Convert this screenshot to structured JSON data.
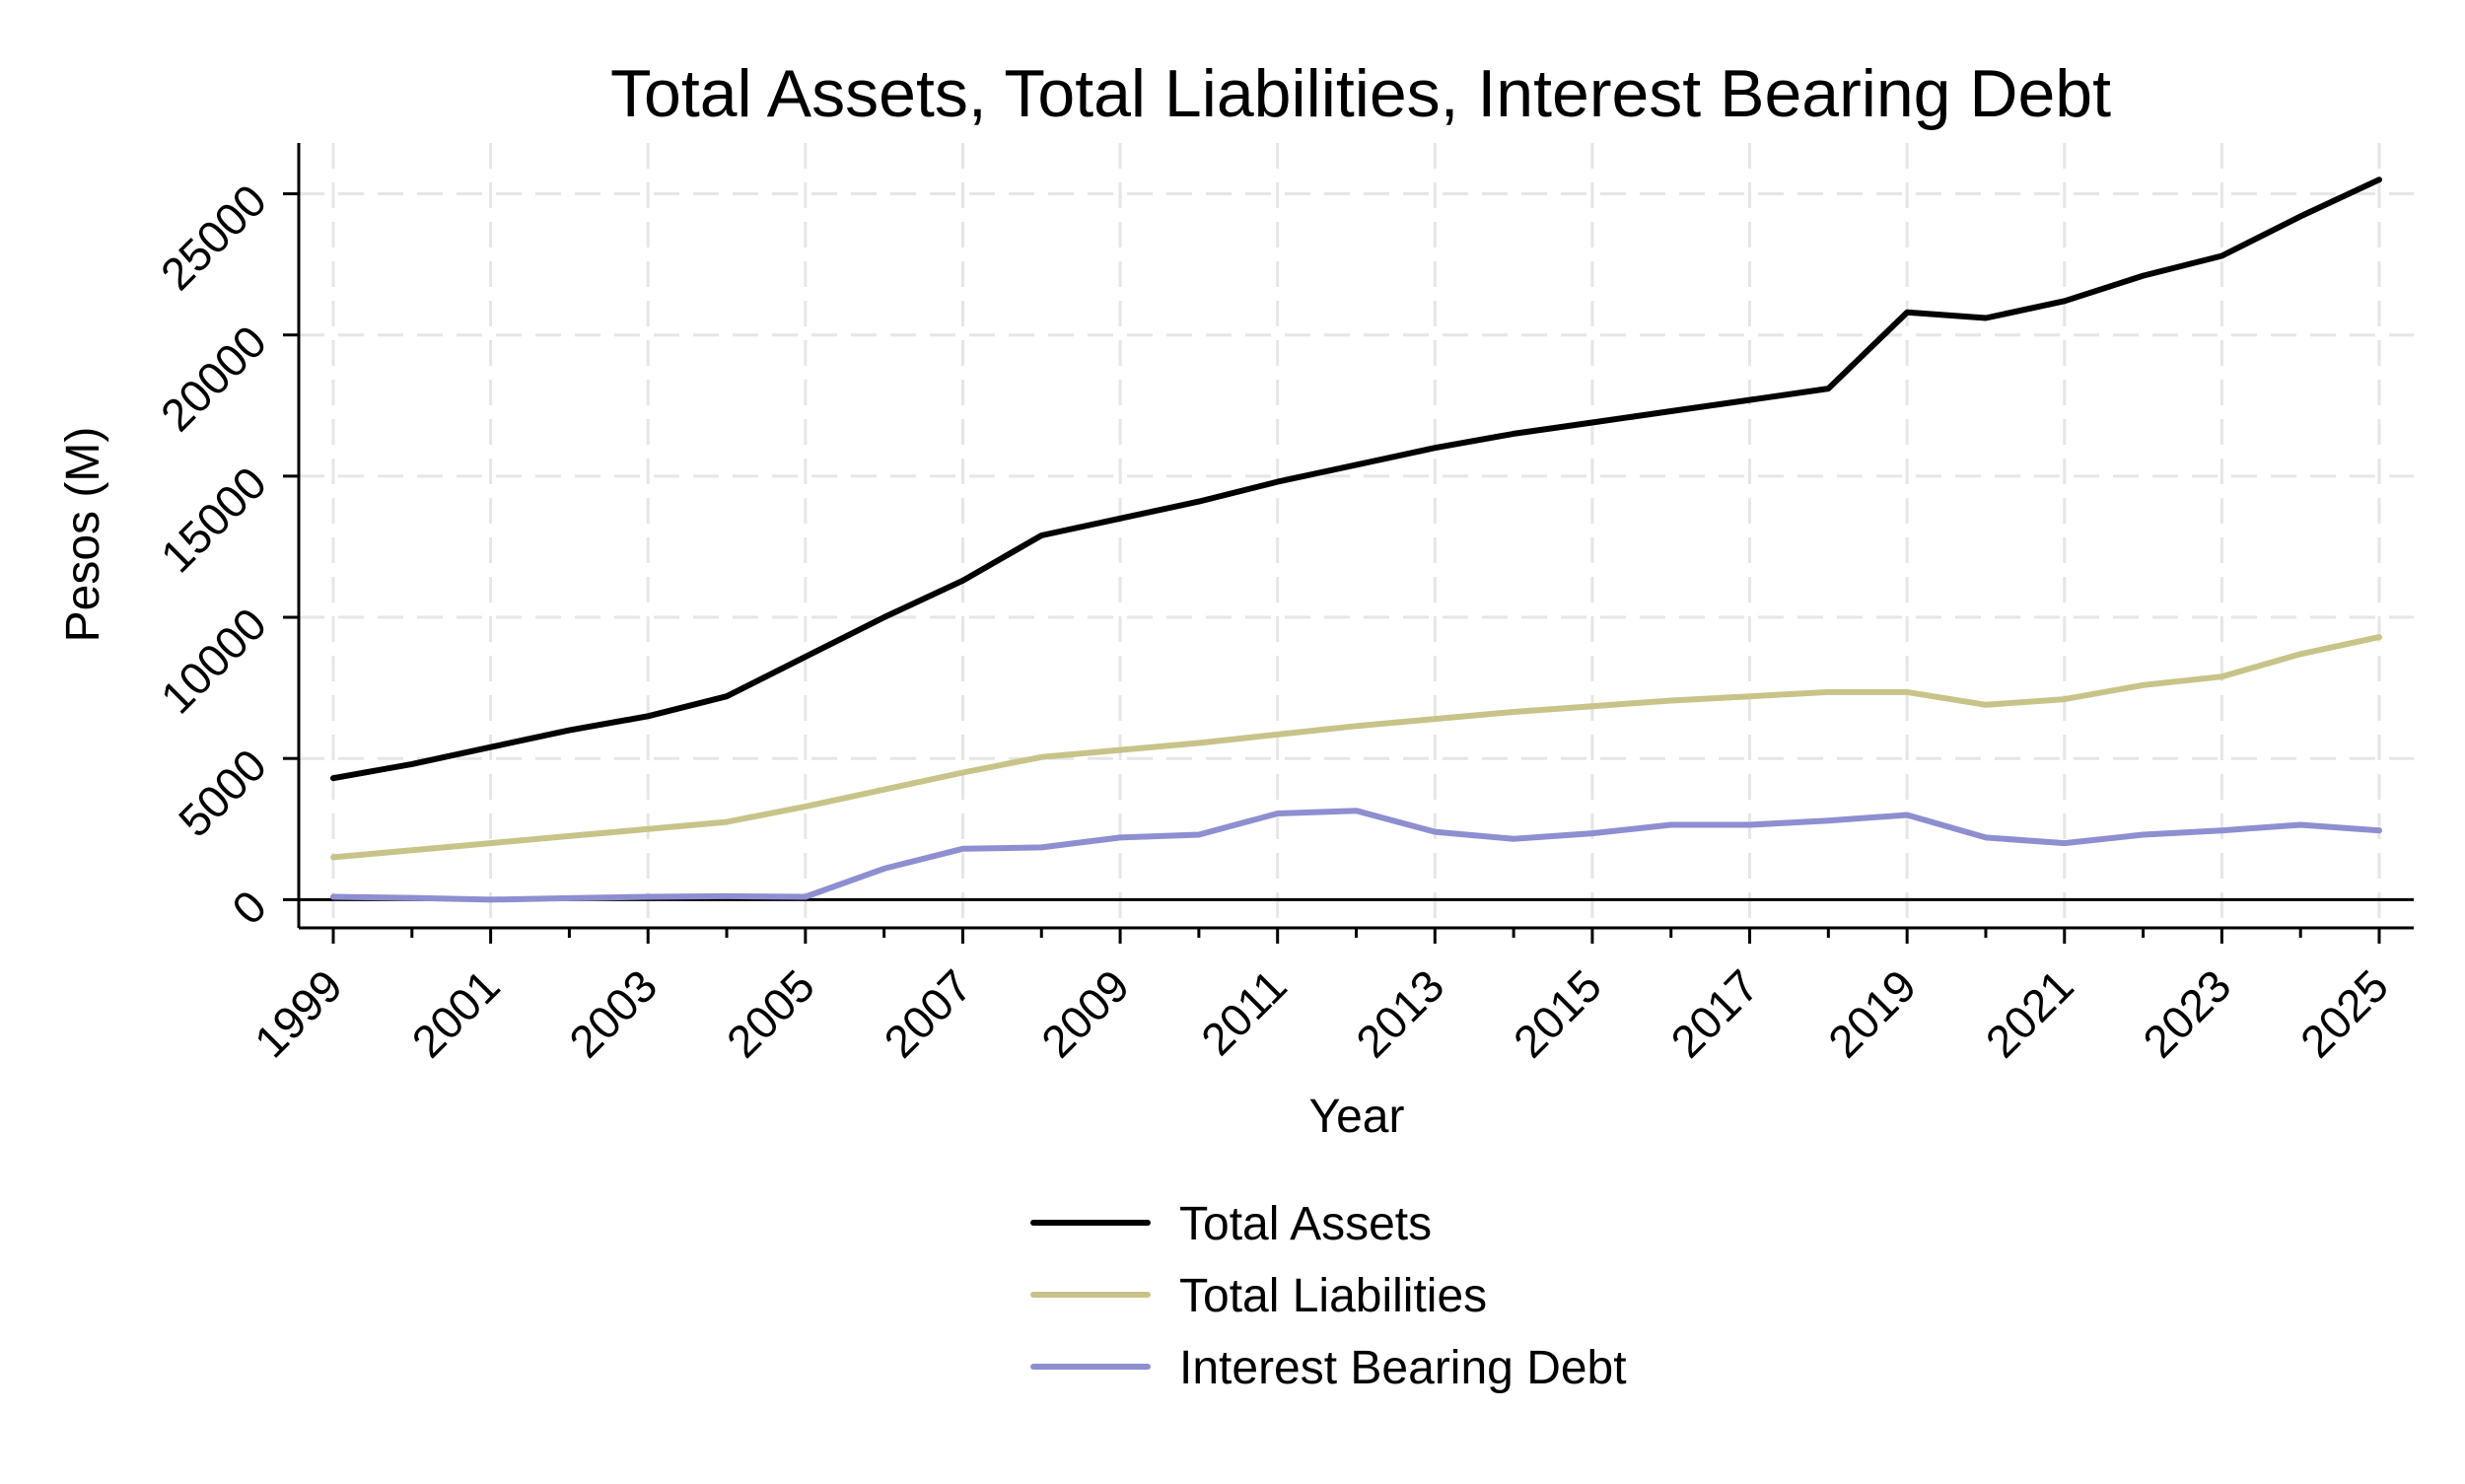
{
  "chart_data": {
    "type": "line",
    "title": "Total Assets, Total Liabilities, Interest Bearing Debt",
    "xlabel": "Year",
    "ylabel": "Pesos (M)",
    "x": [
      1999,
      2000,
      2001,
      2002,
      2003,
      2004,
      2005,
      2006,
      2007,
      2008,
      2009,
      2010,
      2011,
      2012,
      2013,
      2014,
      2015,
      2016,
      2017,
      2018,
      2019,
      2020,
      2021,
      2022,
      2023,
      2024,
      2025
    ],
    "xticks": [
      1999,
      2001,
      2003,
      2005,
      2007,
      2009,
      2011,
      2013,
      2015,
      2017,
      2019,
      2021,
      2023,
      2025
    ],
    "yticks": [
      0,
      5000,
      10000,
      15000,
      20000,
      25000
    ],
    "xlim": [
      1999,
      2025
    ],
    "ylim": [
      -1000,
      26800
    ],
    "grid": true,
    "legend_position": "bottom",
    "series": [
      {
        "name": "Total Assets",
        "color": "#000000",
        "values": [
          4300,
          4800,
          5400,
          6000,
          6500,
          7200,
          8600,
          10000,
          11300,
          12900,
          13500,
          14100,
          14800,
          15400,
          16000,
          16500,
          16900,
          17300,
          17700,
          18100,
          20800,
          20600,
          21200,
          22100,
          22800,
          24200,
          25500
        ]
      },
      {
        "name": "Total Liabilities",
        "color": "#c8c388",
        "values": [
          1500,
          1750,
          2000,
          2250,
          2500,
          2750,
          3300,
          3900,
          4500,
          5050,
          5300,
          5550,
          5850,
          6150,
          6400,
          6650,
          6850,
          7050,
          7200,
          7350,
          7350,
          6900,
          7100,
          7600,
          7900,
          8700,
          9300
        ]
      },
      {
        "name": "Interest Bearing Debt",
        "color": "#8e8ed1",
        "values": [
          100,
          60,
          0,
          50,
          100,
          120,
          100,
          1100,
          1800,
          1850,
          2200,
          2300,
          3050,
          3150,
          2400,
          2150,
          2350,
          2650,
          2650,
          2800,
          3000,
          2200,
          2000,
          2300,
          2450,
          2650,
          2450
        ]
      }
    ]
  }
}
